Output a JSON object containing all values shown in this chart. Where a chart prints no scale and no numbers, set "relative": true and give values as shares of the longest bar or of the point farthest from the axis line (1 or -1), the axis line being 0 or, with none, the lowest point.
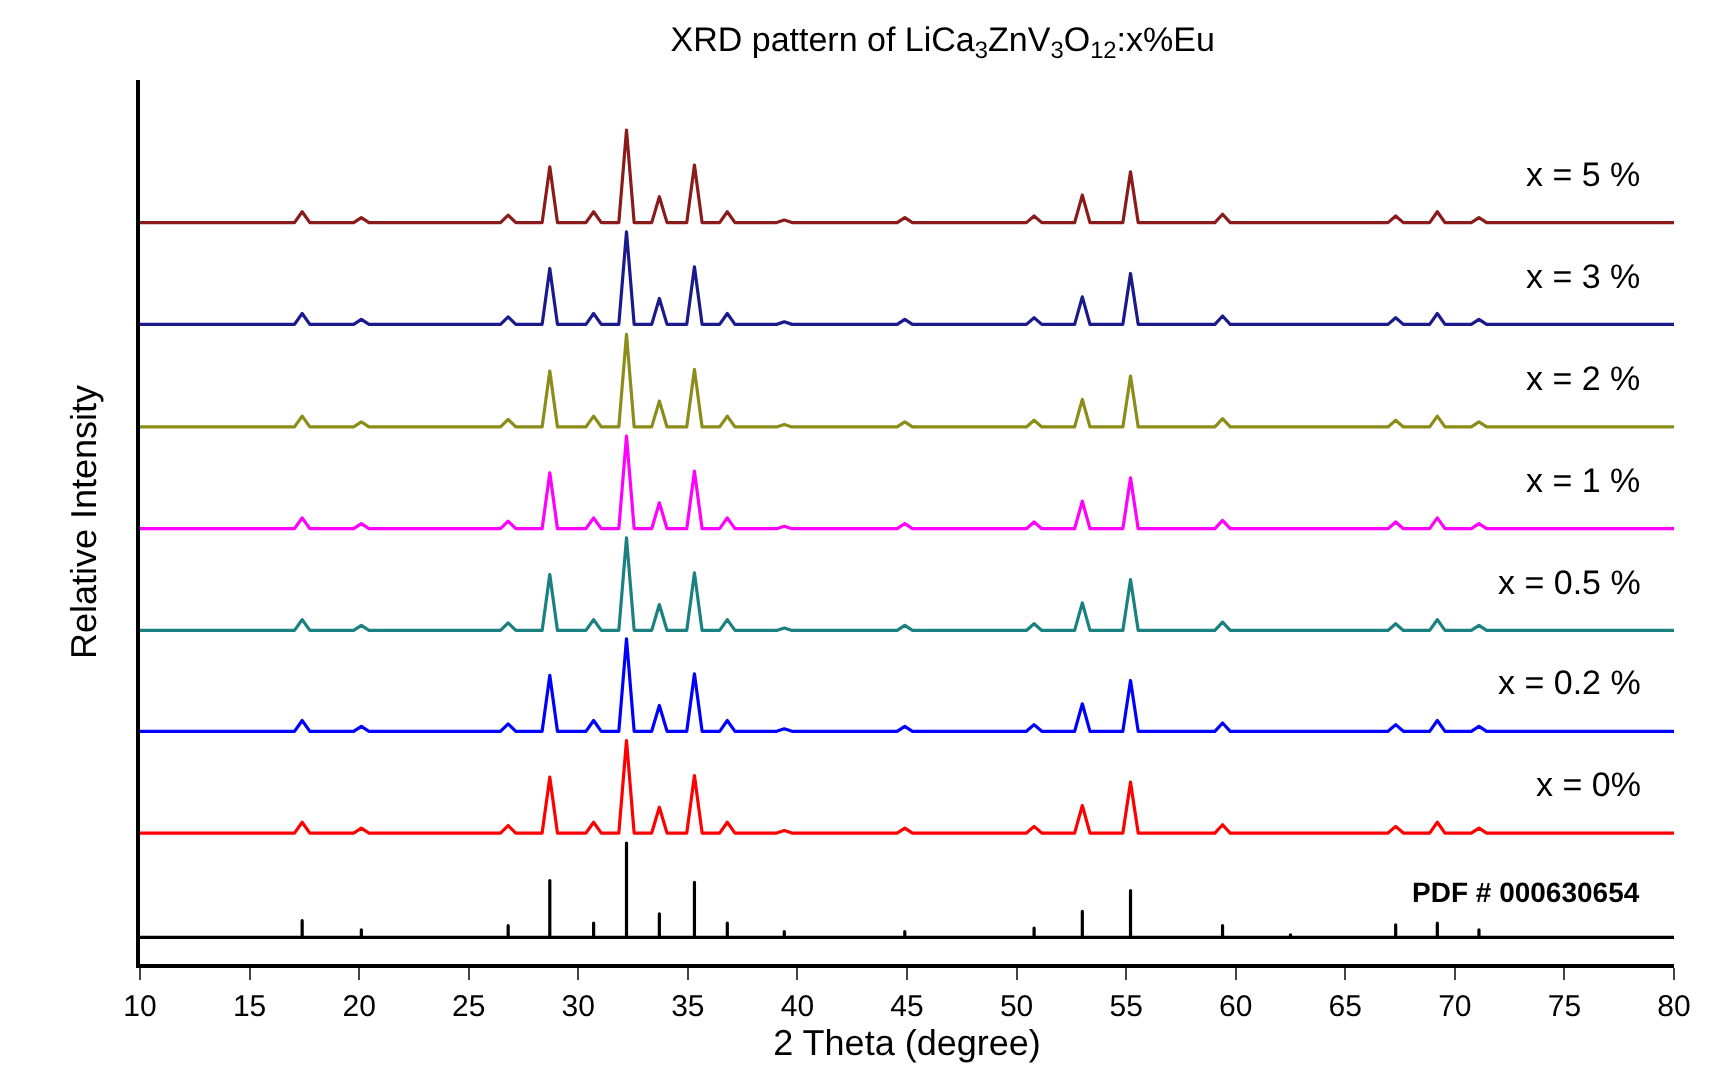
{
  "chart_data": {
    "type": "line",
    "title": "XRD pattern of LiCa$_{3}$ZnV$_{3}$O$_{12}$:x%Eu",
    "xlabel": "2 Theta (degree)",
    "ylabel": "Relative Intensity",
    "relative": true,
    "xlim": [
      10,
      80
    ],
    "xticks": [
      10,
      15,
      20,
      25,
      30,
      35,
      40,
      45,
      50,
      55,
      60,
      65,
      70,
      75,
      80
    ],
    "legend": false,
    "marker": "none",
    "line_style": "solid",
    "x": [
      10,
      17.05,
      17.4,
      17.75,
      19.75,
      20.1,
      20.45,
      26.45,
      26.8,
      27.15,
      28.35,
      28.7,
      29.05,
      30.35,
      30.7,
      31.05,
      31.85,
      32.2,
      32.55,
      33.35,
      33.7,
      34.05,
      34.95,
      35.3,
      35.65,
      36.45,
      36.8,
      37.15,
      39.05,
      39.4,
      39.75,
      44.55,
      44.9,
      45.25,
      50.45,
      50.8,
      51.15,
      52.65,
      53.0,
      53.35,
      54.85,
      55.2,
      55.55,
      59.05,
      59.4,
      59.75,
      66.95,
      67.3,
      67.65,
      68.85,
      69.2,
      69.55,
      70.75,
      71.1,
      71.45,
      80
    ],
    "series": [
      {
        "name": "x = 5 %",
        "color": "#8b1a1a",
        "values": [
          0.889,
          0.889,
          0.902,
          0.889,
          0.889,
          0.895,
          0.889,
          0.889,
          0.898,
          0.889,
          0.889,
          0.956,
          0.889,
          0.889,
          0.902,
          0.889,
          0.889,
          1.0,
          0.889,
          0.889,
          0.92,
          0.889,
          0.889,
          0.958,
          0.889,
          0.889,
          0.902,
          0.889,
          0.889,
          0.892,
          0.889,
          0.889,
          0.895,
          0.889,
          0.889,
          0.897,
          0.889,
          0.889,
          0.922,
          0.889,
          0.889,
          0.95,
          0.889,
          0.889,
          0.899,
          0.889,
          0.889,
          0.897,
          0.889,
          0.889,
          0.902,
          0.889,
          0.889,
          0.895,
          0.889,
          0.889
        ]
      },
      {
        "name": "x = 3 %",
        "color": "#1a1a8c",
        "values": [
          0.767,
          0.767,
          0.78,
          0.767,
          0.767,
          0.773,
          0.767,
          0.767,
          0.776,
          0.767,
          0.767,
          0.834,
          0.767,
          0.767,
          0.78,
          0.767,
          0.767,
          0.878,
          0.767,
          0.767,
          0.798,
          0.767,
          0.767,
          0.836,
          0.767,
          0.767,
          0.78,
          0.767,
          0.767,
          0.77,
          0.767,
          0.767,
          0.773,
          0.767,
          0.767,
          0.775,
          0.767,
          0.767,
          0.8,
          0.767,
          0.767,
          0.828,
          0.767,
          0.767,
          0.777,
          0.767,
          0.767,
          0.775,
          0.767,
          0.767,
          0.78,
          0.767,
          0.767,
          0.773,
          0.767,
          0.767
        ]
      },
      {
        "name": "x = 2 %",
        "color": "#8c8c1a",
        "values": [
          0.644,
          0.644,
          0.657,
          0.644,
          0.644,
          0.65,
          0.644,
          0.644,
          0.653,
          0.644,
          0.644,
          0.711,
          0.644,
          0.644,
          0.657,
          0.644,
          0.644,
          0.755,
          0.644,
          0.644,
          0.675,
          0.644,
          0.644,
          0.713,
          0.644,
          0.644,
          0.657,
          0.644,
          0.644,
          0.647,
          0.644,
          0.644,
          0.65,
          0.644,
          0.644,
          0.652,
          0.644,
          0.644,
          0.677,
          0.644,
          0.644,
          0.705,
          0.644,
          0.644,
          0.654,
          0.644,
          0.644,
          0.652,
          0.644,
          0.644,
          0.657,
          0.644,
          0.644,
          0.65,
          0.644,
          0.644
        ]
      },
      {
        "name": "x = 1 %",
        "color": "#ff00ff",
        "values": [
          0.522,
          0.522,
          0.535,
          0.522,
          0.522,
          0.528,
          0.522,
          0.522,
          0.531,
          0.522,
          0.522,
          0.589,
          0.522,
          0.522,
          0.535,
          0.522,
          0.522,
          0.633,
          0.522,
          0.522,
          0.553,
          0.522,
          0.522,
          0.591,
          0.522,
          0.522,
          0.535,
          0.522,
          0.522,
          0.525,
          0.522,
          0.522,
          0.528,
          0.522,
          0.522,
          0.53,
          0.522,
          0.522,
          0.555,
          0.522,
          0.522,
          0.583,
          0.522,
          0.522,
          0.532,
          0.522,
          0.522,
          0.53,
          0.522,
          0.522,
          0.535,
          0.522,
          0.522,
          0.528,
          0.522,
          0.522
        ]
      },
      {
        "name": "x = 0.5 %",
        "color": "#1a8080",
        "values": [
          0.4,
          0.4,
          0.413,
          0.4,
          0.4,
          0.406,
          0.4,
          0.4,
          0.409,
          0.4,
          0.4,
          0.467,
          0.4,
          0.4,
          0.413,
          0.4,
          0.4,
          0.511,
          0.4,
          0.4,
          0.431,
          0.4,
          0.4,
          0.469,
          0.4,
          0.4,
          0.413,
          0.4,
          0.4,
          0.403,
          0.4,
          0.4,
          0.406,
          0.4,
          0.4,
          0.408,
          0.4,
          0.4,
          0.433,
          0.4,
          0.4,
          0.461,
          0.4,
          0.4,
          0.41,
          0.4,
          0.4,
          0.408,
          0.4,
          0.4,
          0.413,
          0.4,
          0.4,
          0.406,
          0.4,
          0.4
        ]
      },
      {
        "name": "x = 0.2 %",
        "color": "#0000ff",
        "values": [
          0.279,
          0.279,
          0.292,
          0.279,
          0.279,
          0.285,
          0.279,
          0.279,
          0.288,
          0.279,
          0.279,
          0.346,
          0.279,
          0.279,
          0.292,
          0.279,
          0.279,
          0.39,
          0.279,
          0.279,
          0.31,
          0.279,
          0.279,
          0.348,
          0.279,
          0.279,
          0.292,
          0.279,
          0.279,
          0.282,
          0.279,
          0.279,
          0.285,
          0.279,
          0.279,
          0.287,
          0.279,
          0.279,
          0.312,
          0.279,
          0.279,
          0.34,
          0.279,
          0.279,
          0.289,
          0.279,
          0.279,
          0.287,
          0.279,
          0.279,
          0.292,
          0.279,
          0.279,
          0.285,
          0.279,
          0.279
        ]
      },
      {
        "name": "x = 0%",
        "color": "#ff0000",
        "values": [
          0.157,
          0.157,
          0.17,
          0.157,
          0.157,
          0.163,
          0.157,
          0.157,
          0.166,
          0.157,
          0.157,
          0.224,
          0.157,
          0.157,
          0.17,
          0.157,
          0.157,
          0.268,
          0.157,
          0.157,
          0.188,
          0.157,
          0.157,
          0.226,
          0.157,
          0.157,
          0.17,
          0.157,
          0.157,
          0.16,
          0.157,
          0.157,
          0.163,
          0.157,
          0.157,
          0.165,
          0.157,
          0.157,
          0.19,
          0.157,
          0.157,
          0.218,
          0.157,
          0.157,
          0.167,
          0.157,
          0.157,
          0.165,
          0.157,
          0.157,
          0.17,
          0.157,
          0.157,
          0.163,
          0.157,
          0.157
        ]
      },
      {
        "name": "PDF # 000630654",
        "color": "#000000",
        "x": [
          10,
          17.4,
          17.4,
          17.4,
          20.1,
          20.1,
          20.1,
          26.8,
          26.8,
          26.8,
          28.7,
          28.7,
          28.7,
          30.7,
          30.7,
          30.7,
          32.2,
          32.2,
          32.2,
          33.7,
          33.7,
          33.7,
          35.3,
          35.3,
          35.3,
          36.8,
          36.8,
          36.8,
          39.4,
          39.4,
          39.4,
          44.9,
          44.9,
          44.9,
          50.8,
          50.8,
          50.8,
          53.0,
          53.0,
          53.0,
          55.2,
          55.2,
          55.2,
          59.4,
          59.4,
          59.4,
          62.5,
          62.5,
          62.5,
          67.3,
          67.3,
          67.3,
          69.2,
          69.2,
          69.2,
          71.1,
          71.1,
          71.1,
          80
        ],
        "values": [
          0.032,
          0.032,
          0.052,
          0.032,
          0.032,
          0.041,
          0.032,
          0.032,
          0.046,
          0.032,
          0.032,
          0.1,
          0.032,
          0.032,
          0.049,
          0.032,
          0.032,
          0.145,
          0.032,
          0.032,
          0.06,
          0.032,
          0.032,
          0.098,
          0.032,
          0.032,
          0.049,
          0.032,
          0.032,
          0.039,
          0.032,
          0.032,
          0.039,
          0.032,
          0.032,
          0.043,
          0.032,
          0.032,
          0.063,
          0.032,
          0.032,
          0.088,
          0.032,
          0.032,
          0.046,
          0.032,
          0.032,
          0.035,
          0.032,
          0.032,
          0.047,
          0.032,
          0.032,
          0.049,
          0.032,
          0.032,
          0.041,
          0.032,
          0.032
        ]
      }
    ]
  }
}
